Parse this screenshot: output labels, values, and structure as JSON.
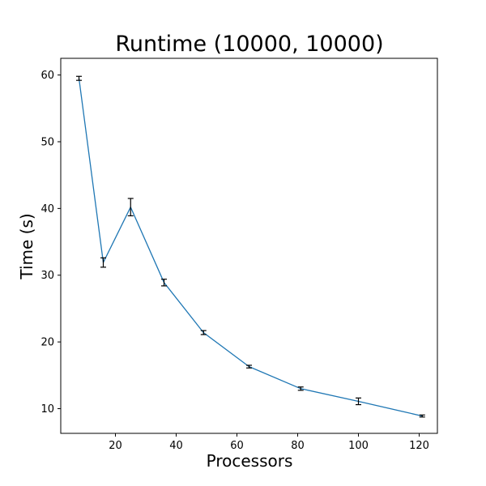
{
  "chart_data": {
    "type": "line",
    "title": "Runtime (10000, 10000)",
    "xlabel": "Processors",
    "ylabel": "Time (s)",
    "xlim": [
      2,
      126
    ],
    "ylim": [
      6.3,
      62.5
    ],
    "xticks": [
      20,
      40,
      60,
      80,
      100,
      120
    ],
    "yticks": [
      10,
      20,
      30,
      40,
      50,
      60
    ],
    "grid": false,
    "legend": "none",
    "series": [
      {
        "color": "#1f77b4",
        "x": [
          8,
          16,
          25,
          36,
          49,
          64,
          81,
          100,
          121
        ],
        "y": [
          59.5,
          31.9,
          40.2,
          28.9,
          21.4,
          16.3,
          13.0,
          11.1,
          8.9
        ],
        "yerr": [
          0.3,
          0.7,
          1.3,
          0.5,
          0.3,
          0.2,
          0.25,
          0.5,
          0.15
        ]
      }
    ],
    "errorbar_color": "#000000"
  }
}
